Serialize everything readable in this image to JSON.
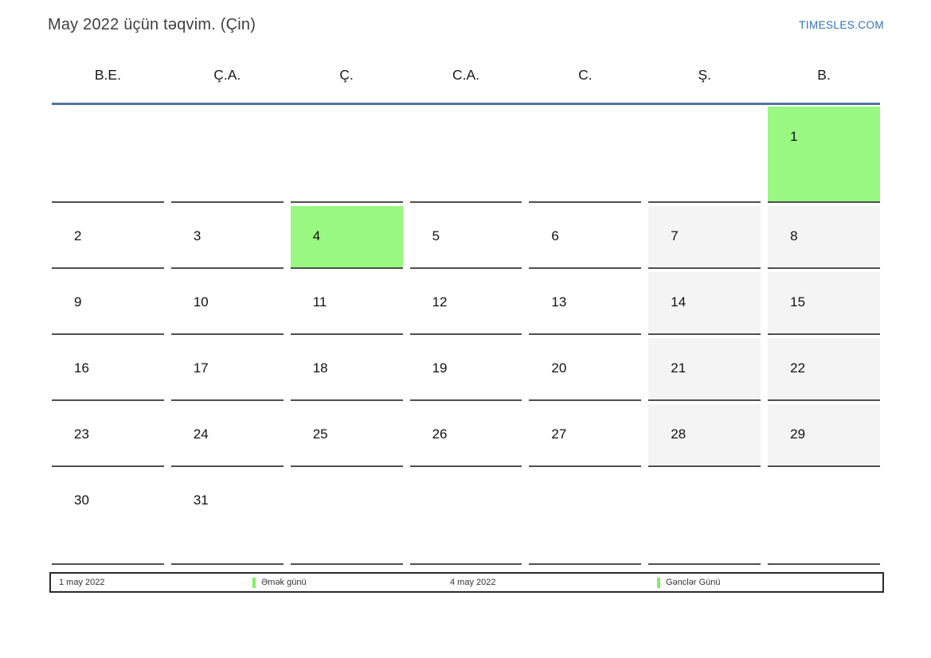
{
  "header": {
    "title": "May 2022 üçün təqvim. (Çin)",
    "site_link": "TIMESLES.COM"
  },
  "calendar": {
    "weekday_headers": [
      "B.E.",
      "Ç.A.",
      "Ç.",
      "C.A.",
      "C.",
      "Ş.",
      "B."
    ],
    "weeks": [
      [
        {
          "day": "",
          "type": ""
        },
        {
          "day": "",
          "type": ""
        },
        {
          "day": "",
          "type": ""
        },
        {
          "day": "",
          "type": ""
        },
        {
          "day": "",
          "type": ""
        },
        {
          "day": "",
          "type": ""
        },
        {
          "day": "1",
          "type": "holiday"
        }
      ],
      [
        {
          "day": "2",
          "type": ""
        },
        {
          "day": "3",
          "type": ""
        },
        {
          "day": "4",
          "type": "holiday"
        },
        {
          "day": "5",
          "type": ""
        },
        {
          "day": "6",
          "type": ""
        },
        {
          "day": "7",
          "type": "weekend"
        },
        {
          "day": "8",
          "type": "weekend"
        }
      ],
      [
        {
          "day": "9",
          "type": ""
        },
        {
          "day": "10",
          "type": ""
        },
        {
          "day": "11",
          "type": ""
        },
        {
          "day": "12",
          "type": ""
        },
        {
          "day": "13",
          "type": ""
        },
        {
          "day": "14",
          "type": "weekend"
        },
        {
          "day": "15",
          "type": "weekend"
        }
      ],
      [
        {
          "day": "16",
          "type": ""
        },
        {
          "day": "17",
          "type": ""
        },
        {
          "day": "18",
          "type": ""
        },
        {
          "day": "19",
          "type": ""
        },
        {
          "day": "20",
          "type": ""
        },
        {
          "day": "21",
          "type": "weekend"
        },
        {
          "day": "22",
          "type": "weekend"
        }
      ],
      [
        {
          "day": "23",
          "type": ""
        },
        {
          "day": "24",
          "type": ""
        },
        {
          "day": "25",
          "type": ""
        },
        {
          "day": "26",
          "type": ""
        },
        {
          "day": "27",
          "type": ""
        },
        {
          "day": "28",
          "type": "weekend"
        },
        {
          "day": "29",
          "type": "weekend"
        }
      ],
      [
        {
          "day": "30",
          "type": ""
        },
        {
          "day": "31",
          "type": ""
        },
        {
          "day": "",
          "type": ""
        },
        {
          "day": "",
          "type": ""
        },
        {
          "day": "",
          "type": ""
        },
        {
          "day": "",
          "type": ""
        },
        {
          "day": "",
          "type": ""
        }
      ]
    ]
  },
  "legend": {
    "items": [
      {
        "date": "1 may 2022",
        "label": "Əmək günü"
      },
      {
        "date": "4 may 2022",
        "label": "Gənclər Günü"
      }
    ]
  },
  "colors": {
    "holiday_cell": "#98f882",
    "weekend_cell": "#f4f4f4",
    "accent_line": "#52749e",
    "link": "#2e74b5",
    "legend_marker": "#83ef62",
    "cell_border": "#4f4f4f"
  }
}
